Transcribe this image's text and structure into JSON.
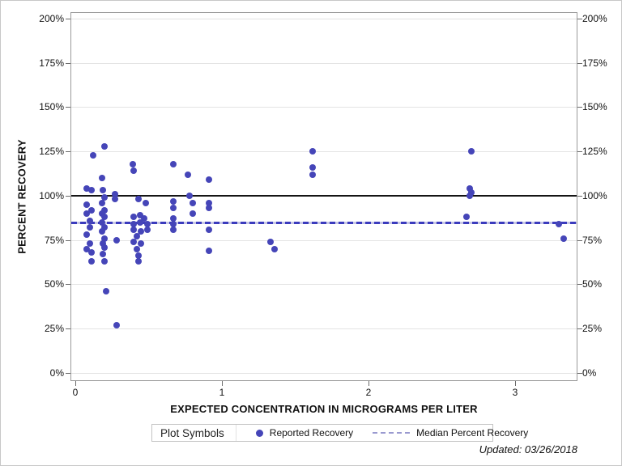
{
  "figure": {
    "updated_note": "Updated: 03/26/2018"
  },
  "axes": {
    "y_title": "PERCENT RECOVERY",
    "x_title": "EXPECTED CONCENTRATION IN MICROGRAMS PER LITER",
    "y_tick_labels": [
      "0%",
      "25%",
      "50%",
      "75%",
      "100%",
      "125%",
      "150%",
      "175%",
      "200%"
    ],
    "x_tick_labels": [
      "0",
      "1",
      "2",
      "3"
    ]
  },
  "legend": {
    "title": "Plot Symbols",
    "items": [
      {
        "label": "Reported Recovery",
        "marker": "dot"
      },
      {
        "label": "Median Percent Recovery",
        "marker": "dashed-line"
      }
    ]
  },
  "colors": {
    "marker": "#4545b8",
    "median_line": "#3b3bbd",
    "reference_line": "#151515",
    "gridline": "#e4e4e4"
  },
  "chart_data": {
    "type": "scatter",
    "title": "",
    "xlabel": "EXPECTED CONCENTRATION IN MICROGRAMS PER LITER",
    "ylabel": "PERCENT RECOVERY",
    "xlim": [
      -0.033,
      3.425
    ],
    "ylim_pct": [
      -4.57,
      203.65
    ],
    "x_ticks": [
      0,
      1,
      2,
      3
    ],
    "y_ticks_pct": [
      0,
      25,
      50,
      75,
      100,
      125,
      150,
      175,
      200
    ],
    "grid": true,
    "legend_position": "bottom",
    "reference_line_pct": 100,
    "median_line_pct": 85,
    "series": [
      {
        "name": "Reported Recovery",
        "points": [
          [
            0.12,
            123
          ],
          [
            0.2,
            128
          ],
          [
            0.39,
            118
          ],
          [
            0.4,
            114
          ],
          [
            0.18,
            110
          ],
          [
            0.08,
            104
          ],
          [
            0.11,
            103
          ],
          [
            0.19,
            103
          ],
          [
            0.27,
            101
          ],
          [
            0.2,
            99
          ],
          [
            0.27,
            98
          ],
          [
            0.43,
            98
          ],
          [
            0.48,
            96
          ],
          [
            0.18,
            96
          ],
          [
            0.08,
            95
          ],
          [
            0.11,
            92
          ],
          [
            0.2,
            92
          ],
          [
            0.08,
            90
          ],
          [
            0.18,
            90
          ],
          [
            0.2,
            88
          ],
          [
            0.1,
            86
          ],
          [
            0.18,
            85
          ],
          [
            0.1,
            82
          ],
          [
            0.2,
            82
          ],
          [
            0.08,
            78
          ],
          [
            0.18,
            80
          ],
          [
            0.2,
            76
          ],
          [
            0.1,
            73
          ],
          [
            0.19,
            73
          ],
          [
            0.08,
            70
          ],
          [
            0.11,
            68
          ],
          [
            0.2,
            71
          ],
          [
            0.19,
            67
          ],
          [
            0.11,
            63
          ],
          [
            0.2,
            63
          ],
          [
            0.28,
            75
          ],
          [
            0.21,
            46
          ],
          [
            0.28,
            27
          ],
          [
            0.4,
            88
          ],
          [
            0.44,
            89
          ],
          [
            0.47,
            87
          ],
          [
            0.4,
            84
          ],
          [
            0.44,
            85
          ],
          [
            0.49,
            84
          ],
          [
            0.4,
            81
          ],
          [
            0.45,
            80
          ],
          [
            0.49,
            81
          ],
          [
            0.42,
            77
          ],
          [
            0.4,
            74
          ],
          [
            0.45,
            73
          ],
          [
            0.42,
            70
          ],
          [
            0.43,
            66
          ],
          [
            0.43,
            63
          ],
          [
            0.67,
            118
          ],
          [
            0.77,
            112
          ],
          [
            0.91,
            109
          ],
          [
            0.78,
            100
          ],
          [
            0.67,
            97
          ],
          [
            0.67,
            93
          ],
          [
            0.8,
            96
          ],
          [
            0.8,
            90
          ],
          [
            0.91,
            96
          ],
          [
            0.91,
            93
          ],
          [
            0.67,
            87
          ],
          [
            0.67,
            84
          ],
          [
            0.67,
            81
          ],
          [
            0.91,
            81
          ],
          [
            0.91,
            69
          ],
          [
            1.33,
            74
          ],
          [
            1.36,
            70
          ],
          [
            1.62,
            125
          ],
          [
            1.62,
            116
          ],
          [
            1.62,
            112
          ],
          [
            2.7,
            125
          ],
          [
            2.69,
            104
          ],
          [
            2.7,
            102
          ],
          [
            2.69,
            100
          ],
          [
            2.67,
            88
          ],
          [
            3.3,
            84
          ],
          [
            3.33,
            76
          ]
        ]
      }
    ]
  }
}
